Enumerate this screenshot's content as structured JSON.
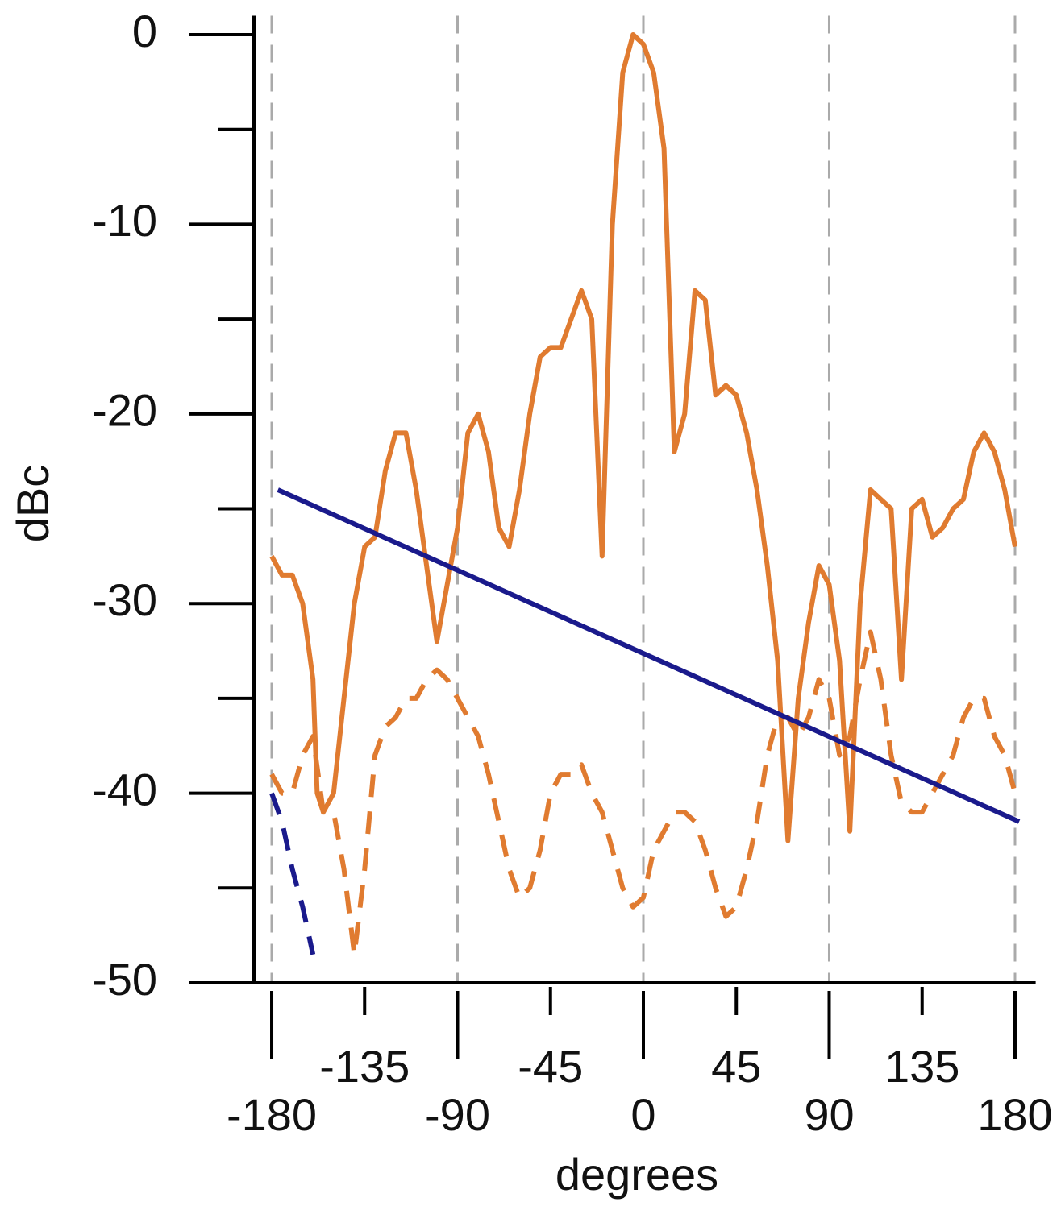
{
  "chart_data": {
    "type": "line",
    "xlabel": "degrees",
    "ylabel": "dBc",
    "xlim": [
      -190,
      190
    ],
    "ylim": [
      -50,
      1
    ],
    "xticks": [
      -180,
      -135,
      -90,
      -45,
      0,
      45,
      90,
      135,
      180
    ],
    "yticks": [
      0,
      -10,
      -20,
      -30,
      -40,
      -50
    ],
    "yminorticks": [
      -5,
      -15,
      -25,
      -35,
      -45
    ],
    "xgrid": [
      -180,
      -90,
      0,
      90,
      180
    ],
    "series": [
      {
        "color": "#e07b30",
        "style": "solid",
        "x": [
          -180,
          -175,
          -170,
          -165,
          -160,
          -158,
          -155,
          -150,
          -145,
          -140,
          -135,
          -130,
          -125,
          -120,
          -115,
          -110,
          -105,
          -100,
          -95,
          -90,
          -85,
          -80,
          -75,
          -70,
          -65,
          -60,
          -55,
          -50,
          -45,
          -40,
          -35,
          -30,
          -25,
          -20,
          -15,
          -10,
          -5,
          0,
          5,
          10,
          15,
          20,
          25,
          30,
          35,
          40,
          45,
          50,
          55,
          60,
          65,
          70,
          75,
          80,
          85,
          90,
          95,
          100,
          105,
          110,
          115,
          120,
          125,
          130,
          135,
          140,
          145,
          150,
          155,
          160,
          165,
          170,
          175,
          180
        ],
        "values": [
          -27.5,
          -28.5,
          -28.5,
          -30,
          -34,
          -40,
          -41,
          -40,
          -35,
          -30,
          -27,
          -26.5,
          -23,
          -21,
          -21,
          -24,
          -28,
          -32,
          -29,
          -26,
          -21,
          -20,
          -22,
          -26,
          -27,
          -24,
          -20,
          -17,
          -16.5,
          -16.5,
          -15,
          -13.5,
          -15,
          -27.5,
          -10,
          -2,
          0,
          -0.5,
          -2,
          -6,
          -22,
          -20,
          -13.5,
          -14,
          -19,
          -18.5,
          -19,
          -21,
          -24,
          -28,
          -33,
          -42.5,
          -35,
          -31,
          -28,
          -29,
          -33,
          -42,
          -30,
          -24,
          -24.5,
          -25,
          -34,
          -25,
          -24.5,
          -26.5,
          -26,
          -25,
          -24.5,
          -22,
          -21,
          -22,
          -24,
          -27
        ]
      },
      {
        "color": "#e07b30",
        "style": "dashed",
        "x": [
          -180,
          -175,
          -170,
          -165,
          -160,
          -155,
          -150,
          -145,
          -140,
          -135,
          -130,
          -125,
          -120,
          -115,
          -110,
          -105,
          -100,
          -95,
          -90,
          -85,
          -80,
          -75,
          -70,
          -65,
          -60,
          -55,
          -50,
          -45,
          -40,
          -35,
          -30,
          -25,
          -20,
          -15,
          -10,
          -5,
          0,
          5,
          10,
          15,
          20,
          25,
          30,
          35,
          40,
          45,
          50,
          55,
          60,
          65,
          70,
          75,
          80,
          85,
          90,
          95,
          100,
          105,
          110,
          115,
          120,
          125,
          130,
          135,
          140,
          145,
          150,
          155,
          160,
          165,
          170,
          175,
          180
        ],
        "values": [
          -39,
          -40,
          -40,
          -38,
          -37,
          -41,
          -41,
          -44,
          -48.5,
          -44,
          -38,
          -36.5,
          -36,
          -35,
          -35,
          -34,
          -33.5,
          -34,
          -35,
          -36,
          -37,
          -39,
          -41.5,
          -44,
          -45.5,
          -45,
          -43,
          -40,
          -39,
          -39,
          -38.5,
          -40,
          -41,
          -43,
          -45,
          -46,
          -45.5,
          -43,
          -42,
          -41,
          -41,
          -41.5,
          -43,
          -45,
          -46.5,
          -46,
          -44,
          -41.5,
          -38,
          -36,
          -36,
          -37,
          -36,
          -34,
          -35,
          -38,
          -37,
          -34,
          -31.5,
          -34,
          -38,
          -40.5,
          -41,
          -41,
          -40,
          -39,
          -38,
          -36,
          -35,
          -35,
          -37,
          -38,
          -40
        ]
      },
      {
        "color": "#1a1a8c",
        "style": "solid",
        "x": [
          -177,
          182
        ],
        "values": [
          -24,
          -41.5
        ]
      },
      {
        "color": "#1a1a8c",
        "style": "dashed",
        "x": [
          -180,
          -175,
          -170,
          -165,
          -160
        ],
        "values": [
          -40,
          -41.5,
          -44,
          -46,
          -48.5
        ]
      }
    ]
  }
}
